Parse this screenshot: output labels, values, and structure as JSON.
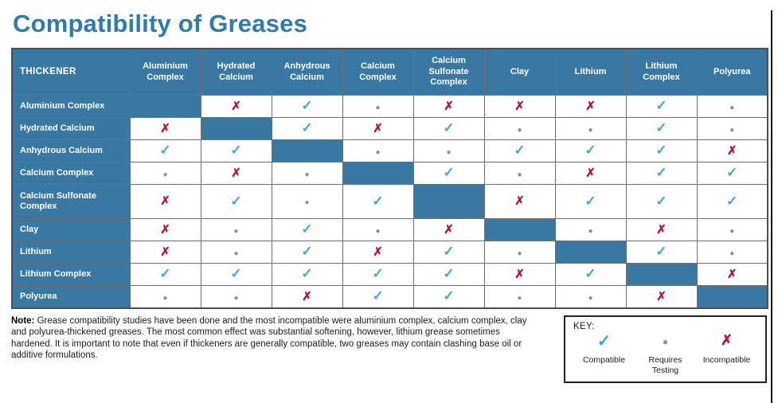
{
  "title": "Compatibility of Greases",
  "chart_data": {
    "type": "table",
    "title": "Compatibility of Greases",
    "corner_label": "THICKENER",
    "columns": [
      "Aluminium Complex",
      "Hydrated Calcium",
      "Anhydrous Calcium",
      "Calcium Complex",
      "Calcium Sulfonate Complex",
      "Clay",
      "Lithium",
      "Lithium Complex",
      "Polyurea"
    ],
    "rows": [
      {
        "label": "Aluminium Complex",
        "cells": [
          "self",
          "x",
          "check",
          "dot",
          "x",
          "x",
          "x",
          "check",
          "dot"
        ]
      },
      {
        "label": "Hydrated Calcium",
        "cells": [
          "x",
          "self",
          "check",
          "x",
          "check",
          "dot",
          "dot",
          "check",
          "dot"
        ]
      },
      {
        "label": "Anhydrous Calcium",
        "cells": [
          "check",
          "check",
          "self",
          "dot",
          "dot",
          "check",
          "check",
          "check",
          "x"
        ]
      },
      {
        "label": "Calcium Complex",
        "cells": [
          "dot",
          "x",
          "dot",
          "self",
          "check",
          "dot",
          "x",
          "check",
          "check"
        ]
      },
      {
        "label": "Calcium Sulfonate Complex",
        "cells": [
          "x",
          "check",
          "dot",
          "check",
          "self",
          "x",
          "check",
          "check",
          "check"
        ]
      },
      {
        "label": "Clay",
        "cells": [
          "x",
          "dot",
          "check",
          "dot",
          "x",
          "self",
          "dot",
          "x",
          "dot"
        ]
      },
      {
        "label": "Lithium",
        "cells": [
          "x",
          "dot",
          "check",
          "x",
          "check",
          "dot",
          "self",
          "check",
          "dot"
        ]
      },
      {
        "label": "Lithium Complex",
        "cells": [
          "check",
          "check",
          "check",
          "check",
          "check",
          "x",
          "check",
          "self",
          "x"
        ]
      },
      {
        "label": "Polyurea",
        "cells": [
          "dot",
          "dot",
          "x",
          "check",
          "check",
          "dot",
          "dot",
          "x",
          "self"
        ]
      }
    ],
    "cell_legend": {
      "check": "Compatible",
      "dot": "Requires Testing",
      "x": "Incompatible",
      "self": "Diagonal self-match (solid blue cell)"
    }
  },
  "note": {
    "label": "Note:",
    "text": " Grease compatibility studies have been done and the most incompatible were aluminium complex, calcium complex, clay and polyurea-thickened greases. The most common effect was substantial softening, however, lithium grease sometimes hardened. It is important to note that even if thickeners are generally compatible, two greases may contain clashing base oil or additive formulations."
  },
  "key": {
    "label": "KEY:",
    "items": [
      {
        "symbol": "check",
        "label": "Compatible"
      },
      {
        "symbol": "dot",
        "label": "Requires Testing"
      },
      {
        "symbol": "x",
        "label": "Incompatible"
      }
    ]
  },
  "colors": {
    "title_blue": "#2f7bad",
    "header_blue": "#3878a3",
    "check_blue": "#41a5e1",
    "incompatible_red": "#b8123d",
    "dot_gray": "#8e8e8e",
    "grid_gray": "#6f6f6f"
  }
}
